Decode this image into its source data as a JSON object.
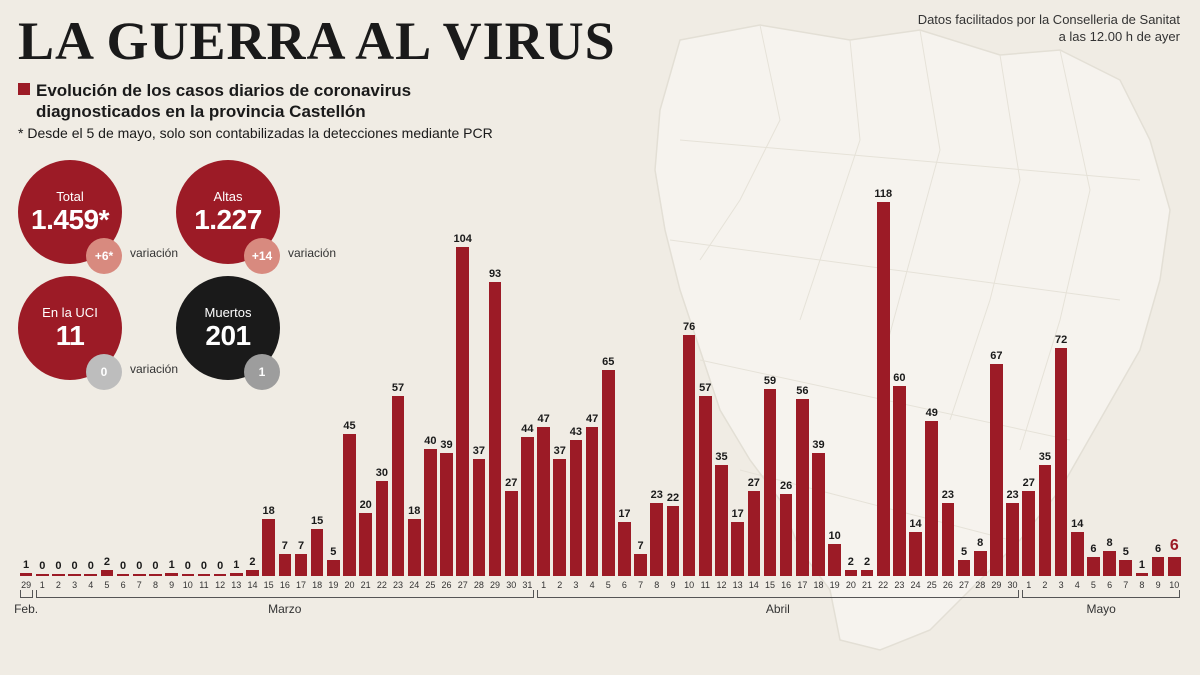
{
  "title": "LA GUERRA AL VIRUS",
  "source_line1": "Datos facilitados por la Conselleria de Sanitat",
  "source_line2": "a las 12.00 h de ayer",
  "subtitle": "Evolución de los casos diarios de coronavirus diagnosticados en la provincia Castellón",
  "footnote": "* Desde el 5 de mayo, solo son contabilizadas la detecciones mediante PCR",
  "stats": [
    {
      "label": "Total",
      "value": "1.459*",
      "circle_color": "#9c1b26",
      "delta": "+6*",
      "delta_color": "#d88a7f",
      "var_label": "variación"
    },
    {
      "label": "Altas",
      "value": "1.227",
      "circle_color": "#9c1b26",
      "delta": "+14",
      "delta_color": "#d88a7f",
      "var_label": "variación"
    },
    {
      "label": "En la UCI",
      "value": "11",
      "circle_color": "#9c1b26",
      "delta": "0",
      "delta_color": "#bdbdbd",
      "var_label": "variación"
    },
    {
      "label": "Muertos",
      "value": "201",
      "circle_color": "#1a1a1a",
      "delta": "1",
      "delta_color": "#9d9d9d",
      "var_label": ""
    }
  ],
  "chart": {
    "max_value": 120,
    "bar_color": "#9c1b26",
    "highlight_last_color": "#9c1b26",
    "highlight_last_label_color": "#9c1b26",
    "data": [
      {
        "day": "29",
        "v": 1
      },
      {
        "day": "1",
        "v": 0
      },
      {
        "day": "2",
        "v": 0
      },
      {
        "day": "3",
        "v": 0
      },
      {
        "day": "4",
        "v": 0
      },
      {
        "day": "5",
        "v": 2
      },
      {
        "day": "6",
        "v": 0
      },
      {
        "day": "7",
        "v": 0
      },
      {
        "day": "8",
        "v": 0
      },
      {
        "day": "9",
        "v": 1
      },
      {
        "day": "10",
        "v": 0
      },
      {
        "day": "11",
        "v": 0
      },
      {
        "day": "12",
        "v": 0
      },
      {
        "day": "13",
        "v": 1
      },
      {
        "day": "14",
        "v": 2
      },
      {
        "day": "15",
        "v": 18
      },
      {
        "day": "16",
        "v": 7
      },
      {
        "day": "17",
        "v": 7
      },
      {
        "day": "18",
        "v": 15
      },
      {
        "day": "19",
        "v": 5
      },
      {
        "day": "20",
        "v": 45
      },
      {
        "day": "21",
        "v": 20
      },
      {
        "day": "22",
        "v": 30
      },
      {
        "day": "23",
        "v": 57
      },
      {
        "day": "24",
        "v": 18
      },
      {
        "day": "25",
        "v": 40
      },
      {
        "day": "26",
        "v": 39
      },
      {
        "day": "27",
        "v": 104
      },
      {
        "day": "28",
        "v": 37
      },
      {
        "day": "29",
        "v": 93
      },
      {
        "day": "30",
        "v": 27
      },
      {
        "day": "31",
        "v": 44
      },
      {
        "day": "1",
        "v": 47
      },
      {
        "day": "2",
        "v": 37
      },
      {
        "day": "3",
        "v": 43
      },
      {
        "day": "4",
        "v": 47
      },
      {
        "day": "5",
        "v": 65
      },
      {
        "day": "6",
        "v": 17
      },
      {
        "day": "7",
        "v": 7
      },
      {
        "day": "8",
        "v": 23
      },
      {
        "day": "9",
        "v": 22
      },
      {
        "day": "10",
        "v": 76
      },
      {
        "day": "11",
        "v": 57
      },
      {
        "day": "12",
        "v": 35
      },
      {
        "day": "13",
        "v": 17
      },
      {
        "day": "14",
        "v": 27
      },
      {
        "day": "15",
        "v": 59
      },
      {
        "day": "16",
        "v": 26
      },
      {
        "day": "17",
        "v": 56
      },
      {
        "day": "18",
        "v": 39
      },
      {
        "day": "19",
        "v": 10
      },
      {
        "day": "20",
        "v": 2
      },
      {
        "day": "21",
        "v": 2
      },
      {
        "day": "22",
        "v": 118
      },
      {
        "day": "23",
        "v": 60
      },
      {
        "day": "24",
        "v": 14
      },
      {
        "day": "25",
        "v": 49
      },
      {
        "day": "26",
        "v": 23
      },
      {
        "day": "27",
        "v": 5
      },
      {
        "day": "28",
        "v": 8
      },
      {
        "day": "29",
        "v": 67
      },
      {
        "day": "30",
        "v": 23
      },
      {
        "day": "1",
        "v": 27
      },
      {
        "day": "2",
        "v": 35
      },
      {
        "day": "3",
        "v": 72
      },
      {
        "day": "4",
        "v": 14
      },
      {
        "day": "5",
        "v": 6
      },
      {
        "day": "6",
        "v": 8
      },
      {
        "day": "7",
        "v": 5
      },
      {
        "day": "8",
        "v": 1
      },
      {
        "day": "9",
        "v": 6
      },
      {
        "day": "10",
        "v": 6,
        "highlight": true
      }
    ],
    "months": [
      {
        "label": "Feb.",
        "start": 0,
        "end": 0
      },
      {
        "label": "Marzo",
        "start": 1,
        "end": 31
      },
      {
        "label": "Abril",
        "start": 32,
        "end": 61
      },
      {
        "label": "Mayo",
        "start": 62,
        "end": 71
      }
    ]
  },
  "colors": {
    "background": "#f0ece4",
    "text": "#1a1a1a",
    "bar": "#9c1b26"
  }
}
